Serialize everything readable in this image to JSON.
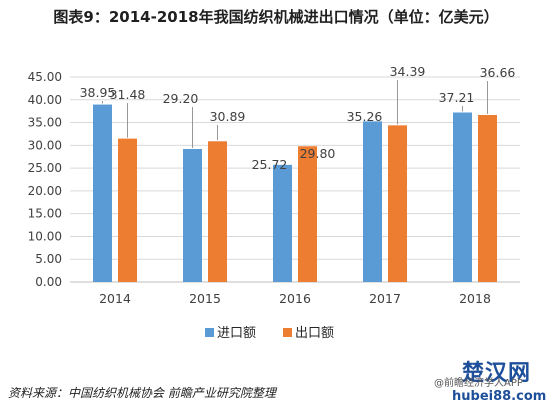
{
  "title": "图表9：2014-2018年我国纺织机械进出口情况（单位：亿美元）",
  "source": "资料来源：中国纺织机械协会 前瞻产业研究院整理",
  "watermark": {
    "brand": "楚汉网",
    "site": "hubei88.com",
    "tag": "@前瞻经济学人APP"
  },
  "colors": {
    "import": "#5b9bd5",
    "export": "#ed7d31",
    "grid": "#d9d9d9",
    "axis_text": "#404040"
  },
  "chart_data": {
    "type": "bar",
    "categories": [
      "2014",
      "2015",
      "2016",
      "2017",
      "2018"
    ],
    "series": [
      {
        "name": "进口额",
        "values": [
          38.95,
          29.2,
          25.72,
          35.26,
          37.21
        ],
        "labels": [
          "38.95",
          "29.20",
          "25.72",
          "35.26",
          "37.21"
        ]
      },
      {
        "name": "出口额",
        "values": [
          31.48,
          30.89,
          29.8,
          34.39,
          36.66
        ],
        "labels": [
          "31.48",
          "30.89",
          "29.80",
          "34.39",
          "36.66"
        ]
      }
    ],
    "ylim": [
      0,
      45
    ],
    "yticks": [
      "0.00",
      "5.00",
      "10.00",
      "15.00",
      "20.00",
      "25.00",
      "30.00",
      "35.00",
      "40.00",
      "45.00"
    ],
    "grid": true,
    "legend_position": "bottom"
  }
}
